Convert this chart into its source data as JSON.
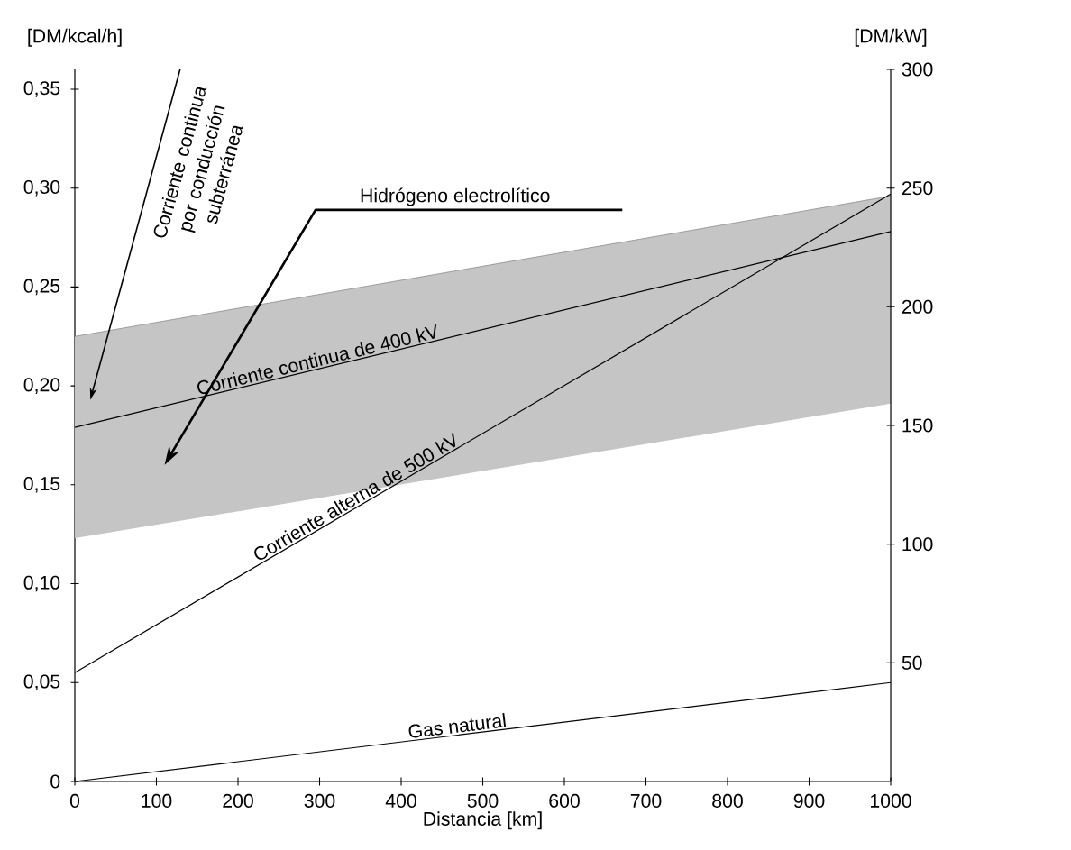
{
  "chart_data": {
    "type": "line",
    "xlabel": "Distancia [km]",
    "ylabel": "[DM/kcal/h]",
    "y2label": "[DM/kW]",
    "x": [
      0,
      1000
    ],
    "xlim": [
      0,
      1000
    ],
    "xticks": [
      0,
      100,
      200,
      300,
      400,
      500,
      600,
      700,
      800,
      900,
      1000
    ],
    "ylim": [
      0,
      0.36
    ],
    "yticks": [
      0,
      {
        "value": 0.05,
        "label": "0,05"
      },
      {
        "value": 0.1,
        "label": "0,10"
      },
      {
        "value": 0.15,
        "label": "0,15"
      },
      {
        "value": 0.2,
        "label": "0,20"
      },
      {
        "value": 0.25,
        "label": "0,25"
      },
      {
        "value": 0.3,
        "label": "0,30"
      },
      {
        "value": 0.35,
        "label": "0,35"
      }
    ],
    "y2lim": [
      0,
      300
    ],
    "y2ticks": [
      50,
      100,
      150,
      200,
      250,
      300
    ],
    "series": [
      {
        "name": "Hidrógeno electrolítico",
        "type": "line",
        "color": "#8c8c8c",
        "values": [
          0.225,
          0.296
        ],
        "lower": [
          0.123,
          0.191
        ],
        "upper": [
          0.225,
          0.296
        ]
      },
      {
        "name": "Corriente continua de 400 kV",
        "color": "#000000",
        "values": [
          0.179,
          0.278
        ]
      },
      {
        "name": "Corriente alterna de 500 kV",
        "color": "#000000",
        "values": [
          0.055,
          0.297
        ]
      },
      {
        "name": "Gas natural",
        "color": "#000000",
        "values": [
          0,
          0.05
        ]
      }
    ],
    "annotations": [
      "Corriente continua por conducción subterránea"
    ]
  }
}
